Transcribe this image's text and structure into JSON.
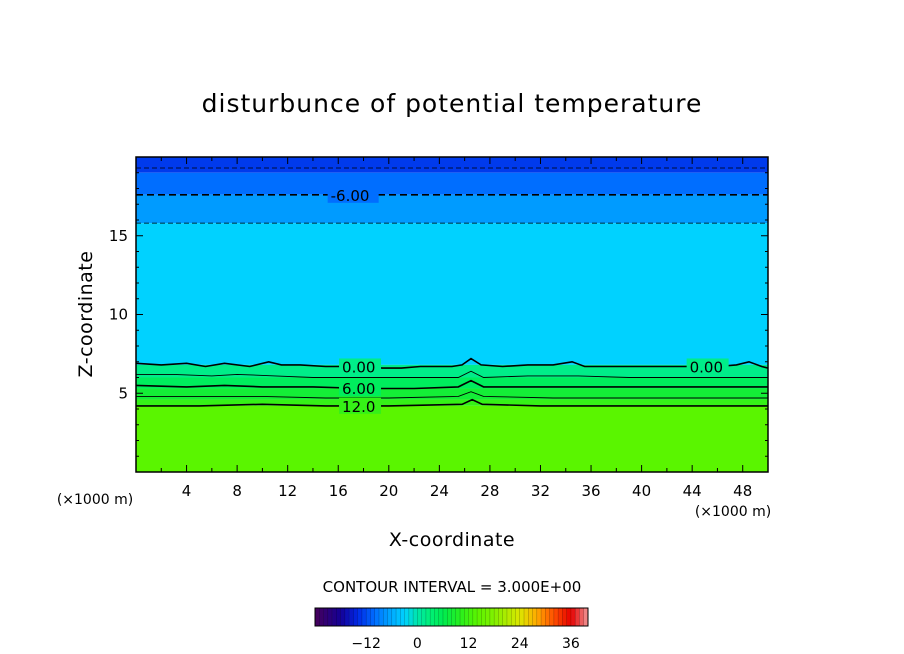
{
  "chart_data": {
    "type": "heatmap",
    "title": "disturbunce of potential temperature",
    "xlabel": "X-coordinate",
    "ylabel": "Z-coordinate",
    "x_unit": "(×1000 m)",
    "y_unit": "(×1000 m)",
    "xlim": [
      0,
      50
    ],
    "ylim": [
      0,
      20
    ],
    "x_ticks": [
      4,
      8,
      12,
      16,
      20,
      24,
      28,
      32,
      36,
      40,
      44,
      48
    ],
    "y_ticks": [
      5,
      10,
      15
    ],
    "field_bands": [
      {
        "z_bottom": 19.0,
        "z_top": 20.0,
        "value": -13
      },
      {
        "z_bottom": 17.6,
        "z_top": 19.0,
        "value": -10
      },
      {
        "z_bottom": 15.8,
        "z_top": 17.6,
        "value": -7
      },
      {
        "z_bottom": 6.8,
        "z_top": 15.8,
        "value": -3
      },
      {
        "z_bottom": 6.0,
        "z_top": 6.8,
        "value": 2
      },
      {
        "z_bottom": 5.3,
        "z_top": 6.0,
        "value": 5
      },
      {
        "z_bottom": 4.6,
        "z_top": 5.3,
        "value": 8
      },
      {
        "z_bottom": 4.2,
        "z_top": 4.6,
        "value": 11
      },
      {
        "z_bottom": 0.0,
        "z_top": 4.2,
        "value": 14
      }
    ],
    "contours": [
      {
        "value": -6.0,
        "label": "-6.00",
        "style": "dashed",
        "label_x": 15.4,
        "points": [
          [
            0,
            17.6
          ],
          [
            50,
            17.6
          ]
        ]
      },
      {
        "value": -3.0,
        "label": "",
        "style": "dashed-thin",
        "points": [
          [
            0,
            15.8
          ],
          [
            50,
            15.8
          ]
        ]
      },
      {
        "value": -9.0,
        "label": "",
        "style": "dashed-thin",
        "points": [
          [
            0,
            19.3
          ],
          [
            50,
            19.3
          ]
        ]
      },
      {
        "value": 0.0,
        "label": "0.00",
        "style": "solid",
        "label_x": [
          16.3,
          43.8
        ],
        "points": [
          [
            0,
            6.9
          ],
          [
            2,
            6.8
          ],
          [
            4,
            6.9
          ],
          [
            5.5,
            6.7
          ],
          [
            7,
            6.9
          ],
          [
            9,
            6.7
          ],
          [
            10.5,
            7.0
          ],
          [
            11.5,
            6.8
          ],
          [
            13,
            6.8
          ],
          [
            15,
            6.7
          ],
          [
            16,
            6.7
          ],
          [
            18,
            6.7
          ],
          [
            19.5,
            6.6
          ],
          [
            21,
            6.6
          ],
          [
            22.5,
            6.7
          ],
          [
            25,
            6.7
          ],
          [
            25.8,
            6.8
          ],
          [
            26.5,
            7.2
          ],
          [
            27.3,
            6.8
          ],
          [
            29,
            6.7
          ],
          [
            31,
            6.8
          ],
          [
            33,
            6.8
          ],
          [
            34.5,
            7.0
          ],
          [
            35.5,
            6.7
          ],
          [
            37,
            6.7
          ],
          [
            40,
            6.7
          ],
          [
            43,
            6.7
          ],
          [
            46,
            6.7
          ],
          [
            47.5,
            6.8
          ],
          [
            48.5,
            7.0
          ],
          [
            49.5,
            6.7
          ],
          [
            50,
            6.6
          ]
        ]
      },
      {
        "value": 3.0,
        "label": "",
        "style": "solid-thin",
        "points": [
          [
            0,
            6.2
          ],
          [
            3,
            6.2
          ],
          [
            6,
            6.1
          ],
          [
            8,
            6.2
          ],
          [
            11,
            6.1
          ],
          [
            14,
            6.0
          ],
          [
            18,
            6.0
          ],
          [
            22,
            6.0
          ],
          [
            25.5,
            6.0
          ],
          [
            26.5,
            6.4
          ],
          [
            27.5,
            6.0
          ],
          [
            31,
            6.1
          ],
          [
            35,
            6.1
          ],
          [
            39,
            6.0
          ],
          [
            44,
            6.0
          ],
          [
            48,
            6.0
          ],
          [
            50,
            6.0
          ]
        ]
      },
      {
        "value": 6.0,
        "label": "6.00",
        "style": "solid",
        "label_x": 16.3,
        "points": [
          [
            0,
            5.5
          ],
          [
            4,
            5.4
          ],
          [
            7,
            5.5
          ],
          [
            10,
            5.4
          ],
          [
            14,
            5.4
          ],
          [
            18,
            5.3
          ],
          [
            22,
            5.3
          ],
          [
            25.5,
            5.4
          ],
          [
            26.5,
            5.8
          ],
          [
            27.5,
            5.4
          ],
          [
            31,
            5.4
          ],
          [
            36,
            5.4
          ],
          [
            42,
            5.4
          ],
          [
            48,
            5.4
          ],
          [
            50,
            5.4
          ]
        ]
      },
      {
        "value": 9.0,
        "label": "",
        "style": "solid-thin",
        "points": [
          [
            0,
            4.8
          ],
          [
            5,
            4.8
          ],
          [
            10,
            4.8
          ],
          [
            15,
            4.7
          ],
          [
            20,
            4.7
          ],
          [
            25.5,
            4.8
          ],
          [
            26.5,
            5.1
          ],
          [
            27.5,
            4.8
          ],
          [
            33,
            4.7
          ],
          [
            40,
            4.7
          ],
          [
            46,
            4.7
          ],
          [
            50,
            4.7
          ]
        ]
      },
      {
        "value": 12.0,
        "label": "12.0",
        "style": "solid",
        "label_x": 16.3,
        "points": [
          [
            0,
            4.2
          ],
          [
            5,
            4.2
          ],
          [
            10,
            4.3
          ],
          [
            15,
            4.2
          ],
          [
            20,
            4.2
          ],
          [
            25.8,
            4.3
          ],
          [
            26.6,
            4.6
          ],
          [
            27.4,
            4.3
          ],
          [
            32,
            4.2
          ],
          [
            38,
            4.2
          ],
          [
            44,
            4.2
          ],
          [
            50,
            4.2
          ]
        ]
      }
    ],
    "colorbar": {
      "ticks": [
        -12,
        0,
        12,
        24,
        36
      ],
      "range": [
        -24,
        40
      ]
    },
    "contour_interval": "CONTOUR INTERVAL = 3.000E+00"
  }
}
